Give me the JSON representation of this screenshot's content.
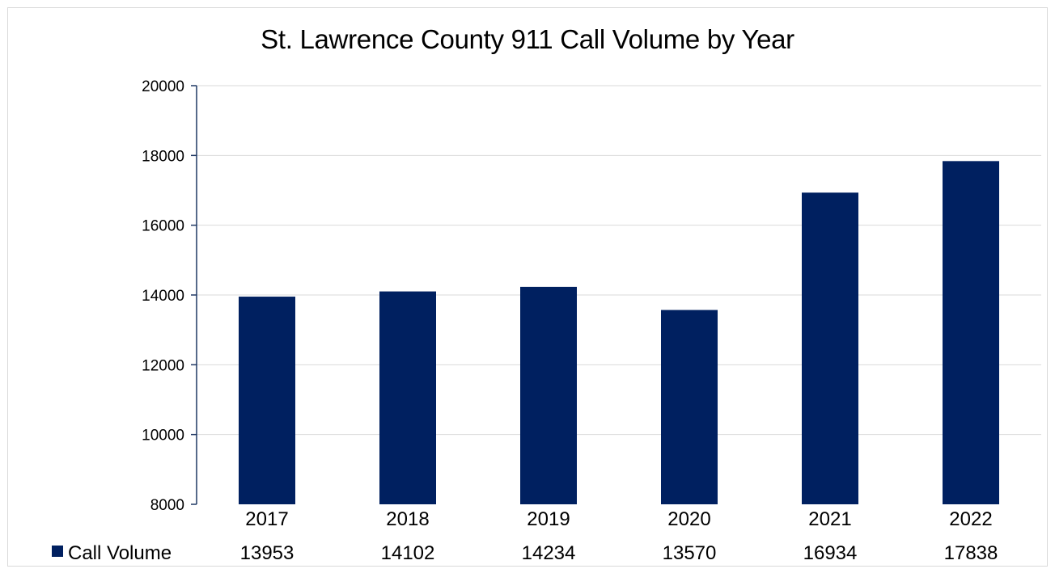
{
  "chart_data": {
    "type": "bar",
    "title": "St. Lawrence County 911 Call Volume by Year",
    "xlabel": "",
    "ylabel": "",
    "categories": [
      "2017",
      "2018",
      "2019",
      "2020",
      "2021",
      "2022"
    ],
    "series": [
      {
        "name": "Call Volume",
        "values": [
          13953,
          14102,
          14234,
          13570,
          16934,
          17838
        ],
        "color": "#002060"
      }
    ],
    "ylim": [
      8000,
      20000
    ],
    "yticks": [
      "8000",
      "10000",
      "12000",
      "14000",
      "16000",
      "18000",
      "20000"
    ],
    "grid": true,
    "legend": "data-table-bottom",
    "colors": {
      "bar": "#002060",
      "axis": "#1f3864",
      "grid": "#d9d9d9"
    }
  }
}
